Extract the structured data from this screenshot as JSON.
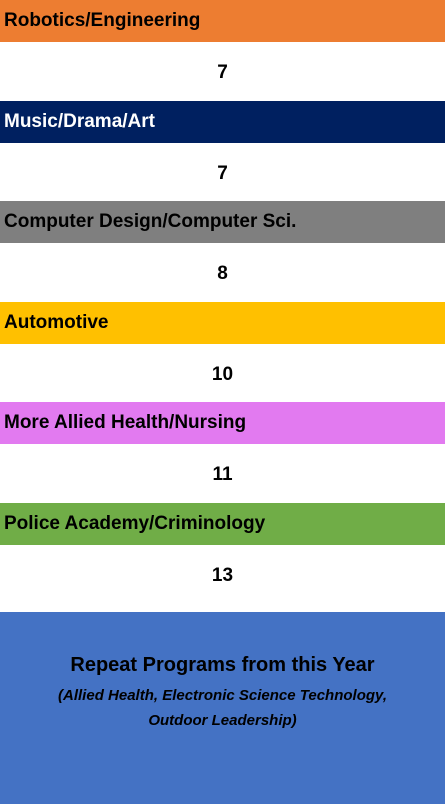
{
  "items": [
    {
      "label": "Robotics/Engineering",
      "value": 7
    },
    {
      "label": "Music/Drama/Art",
      "value": 7
    },
    {
      "label": "Computer Design/Computer Sci.",
      "value": 8
    },
    {
      "label": "Automotive",
      "value": 10
    },
    {
      "label": "More Allied Health/Nursing",
      "value": 11
    },
    {
      "label": "Police Academy/Criminology",
      "value": 13
    }
  ],
  "footer": {
    "title": "Repeat Programs from this Year",
    "subtitle_lines": [
      "(Allied Health, Electronic Science Technology,",
      "Outdoor Leadership)"
    ]
  }
}
